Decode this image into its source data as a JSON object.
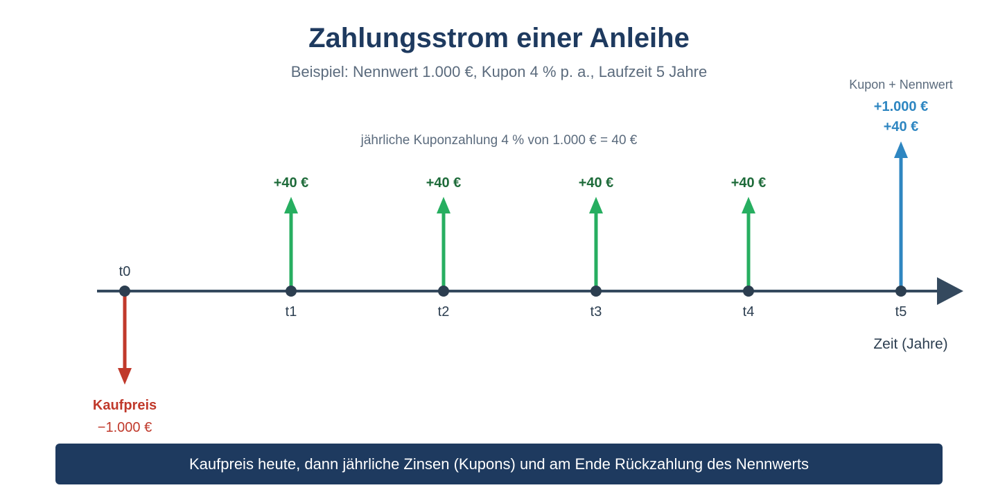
{
  "title": "Zahlungsstrom einer Anleihe",
  "subtitle": "Beispiel: Nennwert 1.000 €, Kupon 4 % p. a., Laufzeit 5 Jahre",
  "coupon_note": "jährliche Kuponzahlung 4 % von 1.000 € = 40 €",
  "axis_label": "Zeit (Jahre)",
  "purchase": {
    "label": "Kaufpreis",
    "amount": "−1.000 €",
    "value": -1000
  },
  "final_payment": {
    "label": "Kupon + Nennwert",
    "principal": "+1.000 €",
    "coupon": "+40 €"
  },
  "timeline": [
    {
      "label": "t0",
      "cashflow": -1000,
      "kind": "purchase"
    },
    {
      "label": "t1",
      "cashflow": 40,
      "amount_label": "+40 €",
      "kind": "coupon"
    },
    {
      "label": "t2",
      "cashflow": 40,
      "amount_label": "+40 €",
      "kind": "coupon"
    },
    {
      "label": "t3",
      "cashflow": 40,
      "amount_label": "+40 €",
      "kind": "coupon"
    },
    {
      "label": "t4",
      "cashflow": 40,
      "amount_label": "+40 €",
      "kind": "coupon"
    },
    {
      "label": "t5",
      "cashflow": 1040,
      "kind": "final"
    }
  ],
  "banner_text": "Kaufpreis heute, dann jährliche Zinsen (Kupons) und am Ende Rückzahlung des Nennwerts",
  "colors": {
    "title": "#1e3a5f",
    "axis": "#34495e",
    "coupon_arrow": "#27ae60",
    "coupon_text": "#1e6b3a",
    "final_arrow": "#2e86c1",
    "purchase_arrow": "#c0392b",
    "banner_bg": "#1e3a5f"
  }
}
